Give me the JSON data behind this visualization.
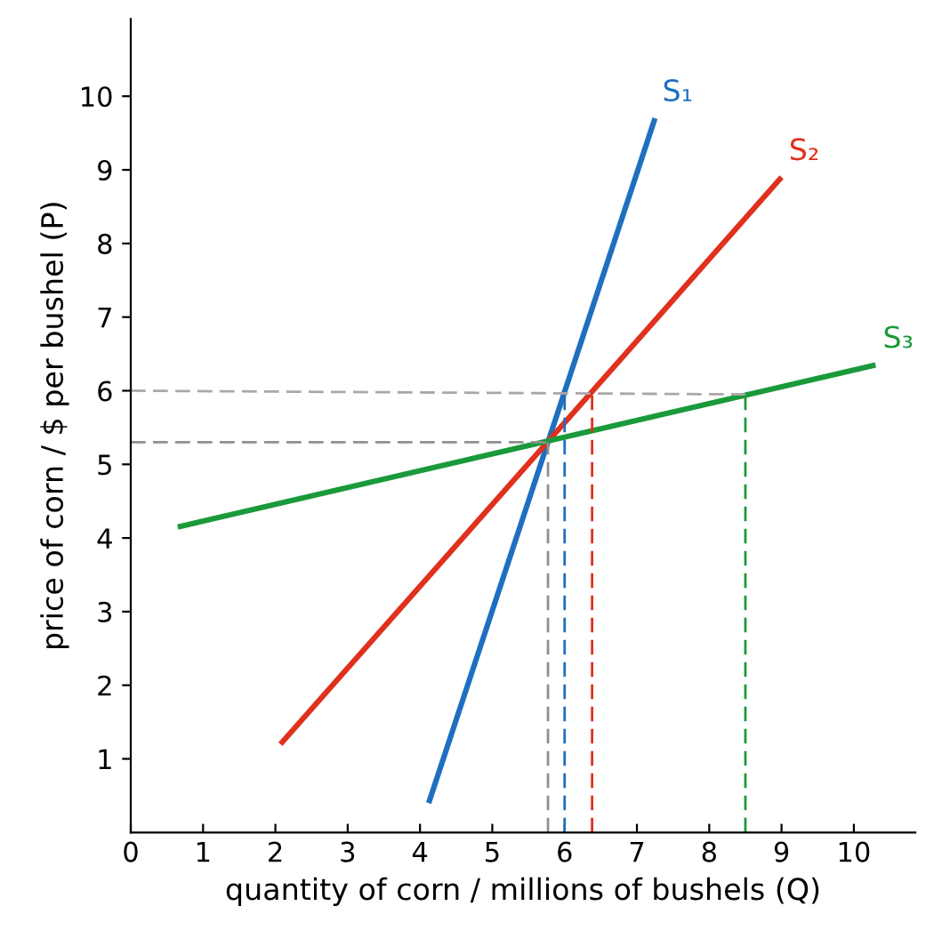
{
  "chart_data": {
    "type": "line",
    "xlabel": "quantity of corn / millions of bushels (Q)",
    "ylabel": "price of corn / $ per bushel (P)",
    "xlim": [
      0,
      10.85
    ],
    "ylim": [
      0,
      11.05
    ],
    "xticks": [
      0,
      1,
      2,
      3,
      4,
      5,
      6,
      7,
      8,
      9,
      10
    ],
    "yticks": [
      1,
      2,
      3,
      4,
      5,
      6,
      7,
      8,
      9,
      10
    ],
    "grid": false,
    "legend": false,
    "marker": "none",
    "series": [
      {
        "name": "S₁",
        "color": "#1f6fbf",
        "x": [
          4.12,
          7.25
        ],
        "values": [
          0.4,
          9.7
        ],
        "line_style": "solid"
      },
      {
        "name": "S₂",
        "color": "#e0301e",
        "x": [
          2.07,
          9.0
        ],
        "values": [
          1.2,
          8.9
        ],
        "line_style": "solid"
      },
      {
        "name": "S₃",
        "color": "#1a9a3a",
        "x": [
          0.65,
          10.3
        ],
        "values": [
          4.15,
          6.35
        ],
        "line_style": "solid"
      },
      {
        "color": "#a8a8a8",
        "x": [
          0,
          8.5
        ],
        "values": [
          6.0,
          5.95
        ],
        "line_style": "dashed"
      },
      {
        "color": "#909090",
        "x": [
          0,
          5.77
        ],
        "values": [
          5.3,
          5.3
        ],
        "line_style": "dashed"
      },
      {
        "color": "#909090",
        "x": [
          5.77,
          5.77
        ],
        "values": [
          0,
          5.3
        ],
        "line_style": "dashed"
      },
      {
        "color": "#1f6fbf",
        "x": [
          6.0,
          6.0
        ],
        "values": [
          0,
          6.0
        ],
        "line_style": "dashed"
      },
      {
        "color": "#e0301e",
        "x": [
          6.38,
          6.38
        ],
        "values": [
          0,
          6.0
        ],
        "line_style": "dashed"
      },
      {
        "color": "#1a9a3a",
        "x": [
          8.5,
          8.5
        ],
        "values": [
          0,
          5.95
        ],
        "line_style": "dashed"
      }
    ]
  }
}
